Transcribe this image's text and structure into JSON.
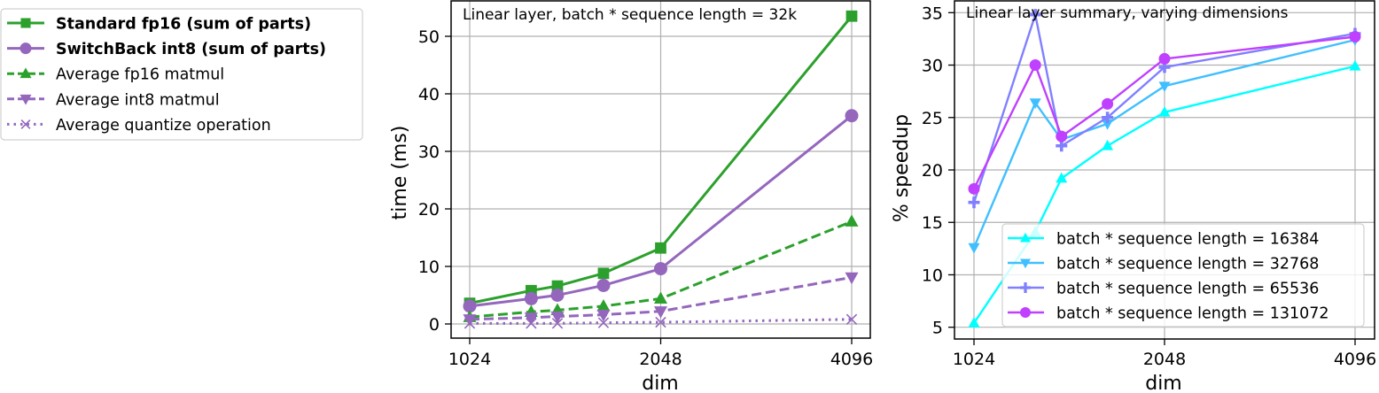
{
  "chart_data": [
    {
      "type": "line",
      "title": "Linear layer, batch * sequence length = 32k",
      "xlabel": "dim",
      "ylabel": "time (ms)",
      "xscale": "log2",
      "x": [
        1024,
        1280,
        1408,
        1664,
        2048,
        4096
      ],
      "xticks": [
        1024,
        2048,
        4096
      ],
      "xtick_labels": [
        "1024",
        "2048",
        "4096"
      ],
      "yticks": [
        0,
        10,
        20,
        30,
        40,
        50
      ],
      "ytick_labels": [
        "0",
        "10",
        "20",
        "30",
        "40",
        "50"
      ],
      "ylim": [
        -3.5,
        56.2
      ],
      "grid": true,
      "legend_position": "outside-left",
      "series": [
        {
          "name": "Standard fp16 (sum of parts)",
          "bold": true,
          "color": "#2ca02c",
          "linestyle": "solid",
          "marker": "square",
          "values": [
            3.6,
            5.8,
            6.6,
            8.8,
            13.2,
            53.5
          ]
        },
        {
          "name": "SwitchBack int8 (sum of parts)",
          "bold": true,
          "color": "#9467bd",
          "linestyle": "solid",
          "marker": "circle",
          "values": [
            3.1,
            4.4,
            5.0,
            6.7,
            9.6,
            36.2
          ]
        },
        {
          "name": "Average fp16 matmul",
          "bold": false,
          "color": "#2ca02c",
          "linestyle": "dashed",
          "marker": "triangle-up",
          "values": [
            1.2,
            2.1,
            2.4,
            3.1,
            4.4,
            17.8
          ]
        },
        {
          "name": "Average int8 matmul",
          "bold": false,
          "color": "#9467bd",
          "linestyle": "dashed",
          "marker": "triangle-down",
          "values": [
            0.8,
            1.1,
            1.3,
            1.6,
            2.2,
            8.1
          ]
        },
        {
          "name": "Average quantize operation",
          "bold": false,
          "color": "#9467bd",
          "linestyle": "dotted",
          "marker": "x",
          "values": [
            0.1,
            0.1,
            0.1,
            0.2,
            0.3,
            0.8
          ]
        }
      ]
    },
    {
      "type": "line",
      "title": "Linear layer summary, varying dimensions",
      "xlabel": "dim",
      "ylabel": "% speedup",
      "xscale": "log2",
      "x": [
        1024,
        1280,
        1408,
        1664,
        2048,
        4096
      ],
      "xticks": [
        1024,
        2048,
        4096
      ],
      "xtick_labels": [
        "1024",
        "2048",
        "4096"
      ],
      "yticks": [
        5,
        10,
        15,
        20,
        25,
        30,
        35
      ],
      "ytick_labels": [
        "5",
        "10",
        "15",
        "20",
        "25",
        "30",
        "35"
      ],
      "ylim": [
        3.9,
        36.2
      ],
      "grid": true,
      "legend_position": "lower right",
      "series": [
        {
          "name": "batch * sequence length = 16384",
          "color": "#00ffff",
          "linestyle": "solid",
          "marker": "triangle-up",
          "values": [
            5.4,
            14.1,
            19.2,
            22.3,
            25.5,
            29.9
          ]
        },
        {
          "name": "batch * sequence length = 32768",
          "color": "#40bfff",
          "linestyle": "solid",
          "marker": "triangle-down",
          "values": [
            12.6,
            26.4,
            22.9,
            24.4,
            28.0,
            32.4
          ]
        },
        {
          "name": "batch * sequence length = 65536",
          "color": "#8080ff",
          "linestyle": "solid",
          "marker": "plus",
          "values": [
            16.9,
            34.8,
            22.3,
            25.0,
            29.8,
            33.0
          ]
        },
        {
          "name": "batch * sequence length = 131072",
          "color": "#bf40ff",
          "linestyle": "solid",
          "marker": "circle",
          "values": [
            18.2,
            30.0,
            23.2,
            26.3,
            30.6,
            32.7
          ]
        }
      ]
    }
  ]
}
